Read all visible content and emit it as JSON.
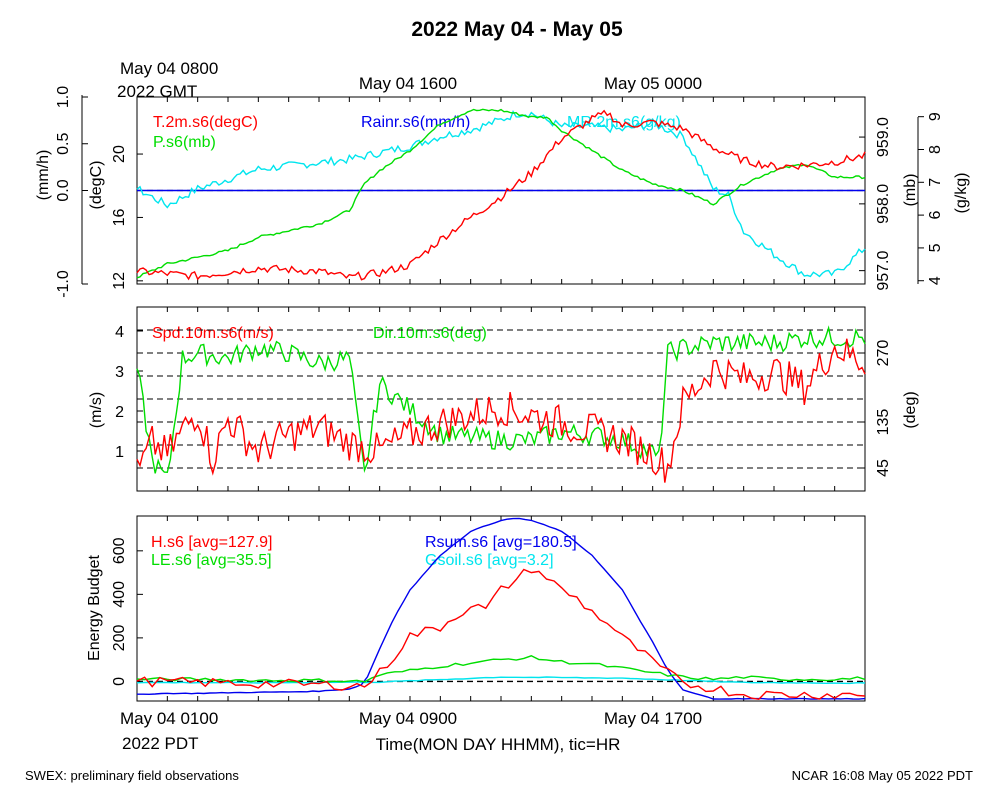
{
  "colors": {
    "red": "#ff0000",
    "green": "#00dd00",
    "blue": "#0000ee",
    "cyan": "#00e5ee",
    "black": "#000000"
  },
  "title": "2022 May 04 - May 05",
  "top_axis": {
    "first_label": [
      "May 04 0800",
      "2022 GMT"
    ],
    "labels": [
      "May 04 1600",
      "May 05 0000"
    ]
  },
  "bottom_axis": {
    "first_label": [
      "May 04 0100",
      "2022 PDT"
    ],
    "labels": [
      "May 04 0900",
      "May 04 1700"
    ],
    "xlabel": "Time(MON DAY HHMM), tic=HR"
  },
  "footer_left": "SWEX: preliminary field observations",
  "footer_right": "NCAR 16:08 May 05 2022 PDT",
  "chart_data": [
    {
      "type": "line",
      "panel": "meteorology",
      "x_hours_pdt": [
        0,
        24
      ],
      "series": [
        {
          "name": "T.2m.s6(degC)",
          "color": "red",
          "axis": "degC",
          "x": [
            0,
            2,
            4,
            6,
            7,
            8,
            9,
            10,
            11,
            12,
            13,
            14,
            15,
            15.5,
            16,
            17,
            18,
            19,
            20,
            21,
            22,
            23,
            24
          ],
          "y": [
            12.6,
            12.3,
            12.8,
            12.6,
            12.2,
            12.5,
            13.0,
            14.6,
            16.0,
            17.3,
            18.8,
            21.0,
            22.2,
            22.6,
            21.8,
            22.0,
            21.6,
            20.4,
            19.6,
            19.2,
            19.3,
            19.5,
            19.9
          ]
        },
        {
          "name": "P.s6(mb)",
          "color": "green",
          "axis": "mb",
          "x": [
            0,
            1,
            2,
            3,
            4,
            5,
            6,
            7,
            7.5,
            8,
            9,
            10,
            11,
            12,
            13,
            13.5,
            14,
            15,
            16,
            17,
            18,
            19,
            20,
            21,
            22,
            23,
            24
          ],
          "y": [
            956.9,
            957.1,
            957.2,
            957.3,
            957.5,
            957.6,
            957.7,
            957.9,
            958.3,
            958.5,
            958.8,
            959.2,
            959.4,
            959.4,
            959.3,
            959.3,
            959.1,
            958.8,
            958.5,
            958.3,
            958.2,
            958.0,
            958.3,
            958.5,
            958.6,
            958.4,
            958.4
          ]
        },
        {
          "name": "MR.2m.s6(g/kg)",
          "color": "cyan",
          "axis": "g/kg",
          "x": [
            0,
            1,
            2,
            3,
            4,
            5,
            6,
            7,
            8,
            9,
            10,
            11,
            12,
            12.5,
            13,
            14,
            15,
            16,
            17,
            18,
            19,
            19.5,
            20,
            21,
            22,
            23,
            24
          ],
          "y": [
            6.8,
            6.3,
            6.8,
            7.1,
            7.4,
            7.5,
            7.6,
            7.7,
            7.9,
            8.1,
            8.4,
            8.6,
            8.9,
            9.1,
            9.1,
            8.7,
            8.7,
            8.6,
            8.8,
            8.4,
            6.8,
            6.6,
            5.5,
            4.8,
            4.2,
            4.2,
            5.0
          ]
        },
        {
          "name": "Rainr.s6(mm/h)",
          "color": "blue",
          "axis": "mm/h",
          "x": [
            0,
            24
          ],
          "y": [
            0,
            0
          ]
        }
      ],
      "axes": {
        "degC": {
          "ticks": [
            12,
            16,
            20
          ],
          "ylim": [
            11.8,
            23.6
          ]
        },
        "mb": {
          "ticks": [
            "957.0",
            "958.0",
            "959.0"
          ],
          "ylim": [
            956.8,
            959.6
          ]
        },
        "g/kg": {
          "ticks": [
            4,
            5,
            6,
            7,
            8,
            9
          ],
          "ylim": [
            3.9,
            9.6
          ]
        },
        "mm/h": {
          "ticks": [
            "1.0",
            "0.5",
            "0.0",
            "-1.0"
          ],
          "ylim": [
            -1.0,
            1.0
          ]
        }
      },
      "ylabels": [
        "(mm/h)",
        "(degC)",
        "(mb)",
        "(g/kg)"
      ]
    },
    {
      "type": "line",
      "panel": "wind",
      "series": [
        {
          "name": "Spd.10m.s6(m/s)",
          "color": "red",
          "axis": "m/s",
          "x": [
            0,
            0.5,
            1,
            1.5,
            2,
            2.5,
            3,
            4,
            5,
            6,
            7,
            8,
            9,
            10,
            11,
            12,
            13,
            14,
            15,
            16,
            17,
            17.5,
            18,
            19,
            20,
            21,
            22,
            23,
            24
          ],
          "y": [
            0.4,
            1.2,
            0.9,
            1.5,
            2.0,
            0.8,
            1.8,
            1.0,
            1.4,
            1.6,
            1.2,
            1.0,
            1.4,
            1.7,
            1.9,
            2.1,
            1.9,
            1.7,
            1.5,
            1.3,
            0.9,
            0.6,
            2.2,
            3.1,
            2.8,
            3.0,
            2.6,
            3.6,
            3.2
          ]
        },
        {
          "name": "Dir.10m.s6(deg)",
          "color": "green",
          "axis": "deg",
          "x": [
            0,
            0.5,
            1,
            1.5,
            2,
            3,
            4,
            5,
            6,
            7,
            7.5,
            8,
            9,
            10,
            11,
            12,
            13,
            14,
            15,
            16,
            17,
            17.2,
            17.5,
            18,
            19,
            20,
            21,
            22,
            23,
            24
          ],
          "y": [
            240,
            60,
            20,
            260,
            270,
            260,
            280,
            270,
            250,
            260,
            30,
            210,
            160,
            110,
            105,
            100,
            100,
            115,
            110,
            100,
            75,
            60,
            270,
            280,
            290,
            290,
            290,
            300,
            300,
            300
          ]
        }
      ],
      "axes": {
        "m/s": {
          "ticks": [
            1,
            2,
            3,
            4
          ],
          "ylim": [
            0.0,
            4.6
          ]
        },
        "deg": {
          "ticks": [
            45,
            135,
            270
          ],
          "ylim": [
            0,
            360
          ]
        }
      },
      "ylabels": [
        "(m/s)",
        "(deg)"
      ]
    },
    {
      "type": "line",
      "panel": "energy",
      "series": [
        {
          "name": "H.s6 [avg=127.9]",
          "color": "red",
          "x": [
            0,
            2,
            4,
            6,
            7.5,
            8,
            8.5,
            9,
            9.5,
            10,
            10.5,
            11,
            11.5,
            12,
            12.5,
            13,
            13.5,
            14,
            14.5,
            15,
            15.5,
            16,
            16.5,
            17,
            17.5,
            18,
            19,
            20
          ],
          "y": [
            0,
            -5,
            -10,
            -15,
            -20,
            40,
            120,
            210,
            230,
            250,
            300,
            350,
            330,
            420,
            470,
            520,
            480,
            420,
            380,
            320,
            270,
            200,
            150,
            90,
            40,
            -10,
            -30,
            -60
          ]
        },
        {
          "name": "LE.s6 [avg=35.5]",
          "color": "green",
          "x": [
            0,
            2,
            4,
            6,
            7.5,
            8,
            9,
            10,
            11,
            12,
            13,
            14,
            15,
            16,
            17,
            18,
            19,
            20,
            21,
            22,
            23,
            24
          ],
          "y": [
            10,
            10,
            5,
            5,
            0,
            30,
            50,
            70,
            85,
            100,
            110,
            90,
            80,
            60,
            40,
            20,
            10,
            20,
            10,
            10,
            10,
            15
          ]
        },
        {
          "name": "Rsum.s6 [avg=180.5]",
          "color": "blue",
          "x": [
            0,
            1,
            2,
            3,
            4,
            5,
            6,
            7,
            7.5,
            8,
            8.5,
            9,
            10,
            11,
            12,
            12.5,
            13,
            14,
            15,
            16,
            17,
            17.5,
            18,
            19,
            20,
            21,
            22,
            23,
            24
          ],
          "y": [
            -60,
            -55,
            -55,
            -52,
            -50,
            -48,
            -45,
            -35,
            -10,
            150,
            300,
            420,
            580,
            690,
            740,
            750,
            740,
            690,
            580,
            420,
            180,
            50,
            -40,
            -80,
            -80,
            -80,
            -80,
            -80,
            -80
          ]
        },
        {
          "name": "Gsoil.s6 [avg=3.2]",
          "color": "cyan",
          "x": [
            0,
            4,
            8,
            12,
            16,
            20,
            24
          ],
          "y": [
            -5,
            -6,
            -3,
            20,
            15,
            -5,
            -8
          ]
        }
      ],
      "axes": {
        "W/m2": {
          "ticks": [
            0,
            200,
            400,
            600
          ],
          "ylim": [
            -90,
            760
          ]
        }
      },
      "ylabels": [
        "Energy Budget"
      ]
    }
  ]
}
